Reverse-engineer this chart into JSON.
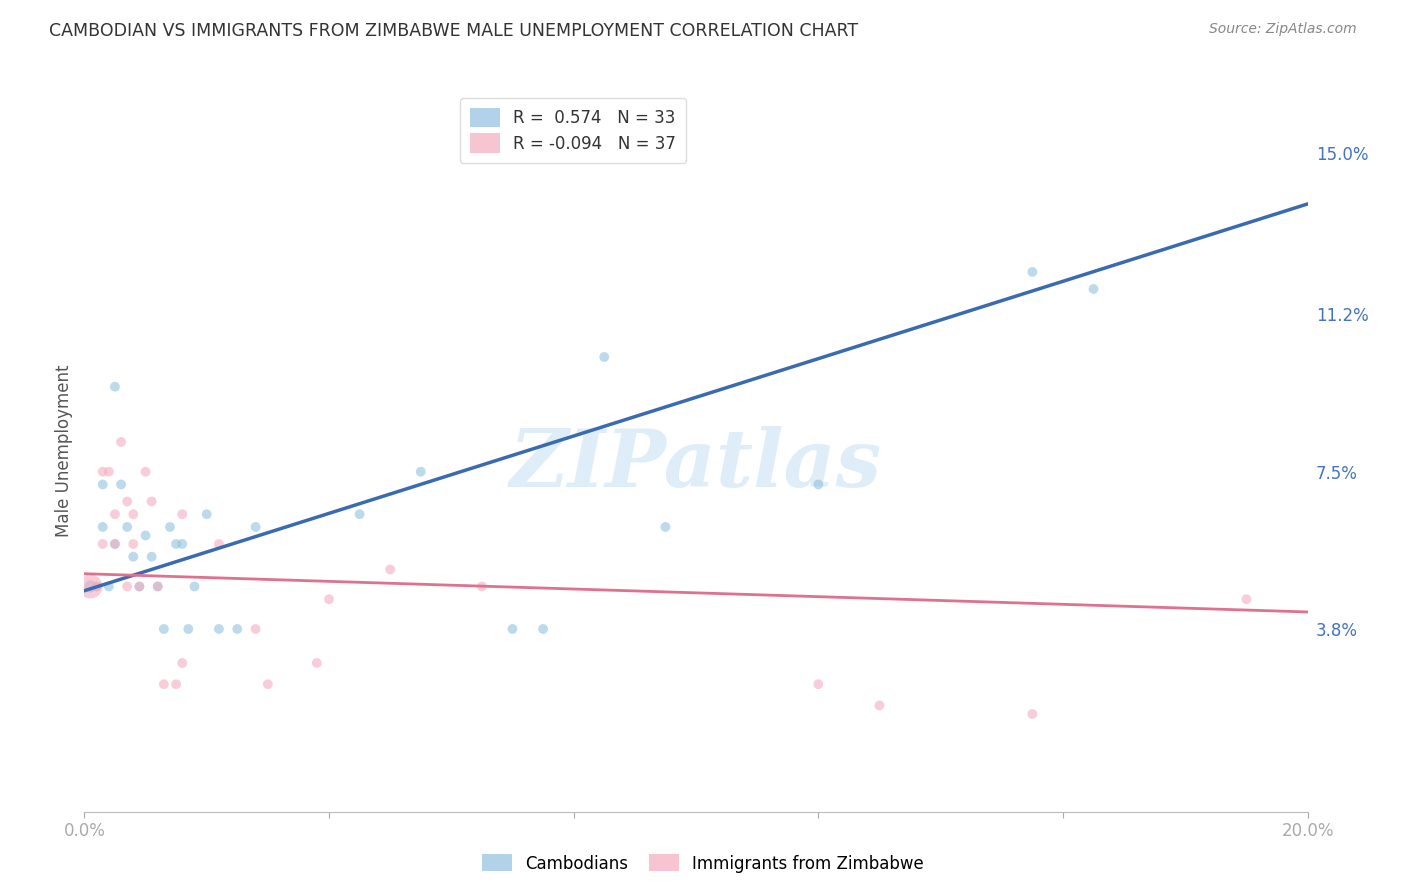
{
  "title": "CAMBODIAN VS IMMIGRANTS FROM ZIMBABWE MALE UNEMPLOYMENT CORRELATION CHART",
  "source": "Source: ZipAtlas.com",
  "ylabel": "Male Unemployment",
  "xlim": [
    0.0,
    0.2
  ],
  "ylim": [
    -0.005,
    0.165
  ],
  "xtick_positions": [
    0.0,
    0.04,
    0.08,
    0.12,
    0.16,
    0.2
  ],
  "xticklabels": [
    "0.0%",
    "",
    "",
    "",
    "",
    "20.0%"
  ],
  "ytick_positions": [
    0.038,
    0.075,
    0.112,
    0.15
  ],
  "ytick_labels": [
    "3.8%",
    "7.5%",
    "11.2%",
    "15.0%"
  ],
  "blue_color": "#92c0e0",
  "pink_color": "#f4adc0",
  "blue_line_color": "#3a6ab0",
  "pink_line_color": "#e07090",
  "watermark_text": "ZIPatlas",
  "blue_line_endpoints_x": [
    0.0,
    0.2
  ],
  "blue_line_endpoints_y": [
    0.047,
    0.138
  ],
  "pink_line_endpoints_x": [
    0.0,
    0.2
  ],
  "pink_line_endpoints_y": [
    0.051,
    0.042
  ],
  "blue_points_x": [
    0.001,
    0.002,
    0.003,
    0.003,
    0.004,
    0.005,
    0.005,
    0.006,
    0.007,
    0.008,
    0.009,
    0.01,
    0.011,
    0.012,
    0.013,
    0.014,
    0.015,
    0.016,
    0.017,
    0.018,
    0.02,
    0.022,
    0.025,
    0.028,
    0.045,
    0.055,
    0.07,
    0.075,
    0.085,
    0.095,
    0.12,
    0.155,
    0.165
  ],
  "blue_points_y": [
    0.048,
    0.048,
    0.072,
    0.062,
    0.048,
    0.058,
    0.095,
    0.072,
    0.062,
    0.055,
    0.048,
    0.06,
    0.055,
    0.048,
    0.038,
    0.062,
    0.058,
    0.058,
    0.038,
    0.048,
    0.065,
    0.038,
    0.038,
    0.062,
    0.065,
    0.075,
    0.038,
    0.038,
    0.102,
    0.062,
    0.072,
    0.122,
    0.118
  ],
  "blue_sizes": [
    80,
    50,
    50,
    50,
    50,
    50,
    50,
    50,
    50,
    50,
    50,
    50,
    50,
    50,
    50,
    50,
    50,
    50,
    50,
    50,
    50,
    50,
    50,
    50,
    50,
    50,
    50,
    50,
    50,
    50,
    50,
    50,
    50
  ],
  "pink_points_x": [
    0.001,
    0.002,
    0.003,
    0.003,
    0.004,
    0.005,
    0.005,
    0.006,
    0.007,
    0.007,
    0.008,
    0.008,
    0.009,
    0.01,
    0.011,
    0.012,
    0.013,
    0.015,
    0.016,
    0.016,
    0.022,
    0.028,
    0.03,
    0.038,
    0.04,
    0.05,
    0.065,
    0.12,
    0.13,
    0.155,
    0.19
  ],
  "pink_points_y": [
    0.048,
    0.048,
    0.058,
    0.075,
    0.075,
    0.058,
    0.065,
    0.082,
    0.048,
    0.068,
    0.058,
    0.065,
    0.048,
    0.075,
    0.068,
    0.048,
    0.025,
    0.025,
    0.03,
    0.065,
    0.058,
    0.038,
    0.025,
    0.03,
    0.045,
    0.052,
    0.048,
    0.025,
    0.02,
    0.018,
    0.045
  ],
  "pink_sizes": [
    300,
    50,
    50,
    50,
    50,
    50,
    50,
    50,
    50,
    50,
    50,
    50,
    50,
    50,
    50,
    50,
    50,
    50,
    50,
    50,
    50,
    50,
    50,
    50,
    50,
    50,
    50,
    50,
    50,
    50,
    50
  ],
  "grid_color": "#cccccc",
  "background_color": "#ffffff",
  "tick_color": "#4472c4",
  "title_color": "#333333",
  "source_color": "#888888",
  "ylabel_color": "#555555"
}
